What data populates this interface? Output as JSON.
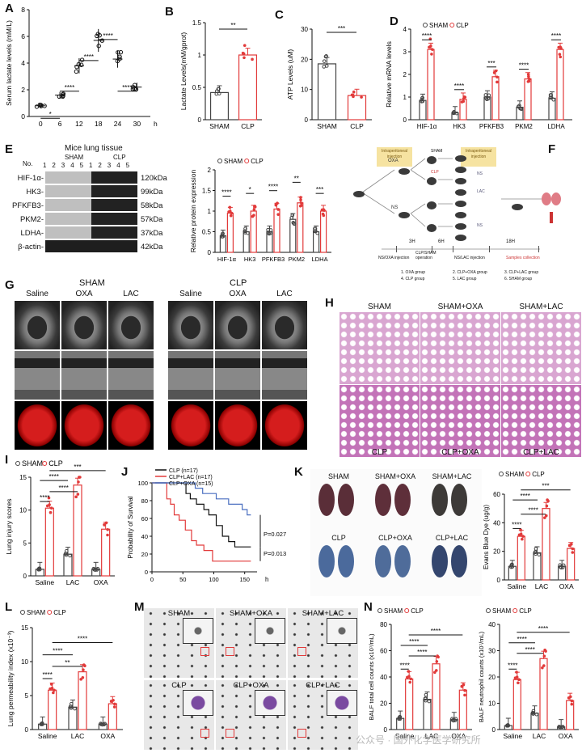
{
  "colors": {
    "sham": "#444444",
    "clp": "#e23a3a",
    "clp_line": "#111111",
    "clp_lac": "#e23a3a",
    "clp_oxa": "#4a6fc0",
    "he_pink": "#d7a2cf",
    "lung_red": "#d51d1d"
  },
  "panel_letters": [
    "A",
    "B",
    "C",
    "D",
    "E",
    "F",
    "G",
    "H",
    "I",
    "J",
    "K",
    "L",
    "M",
    "N"
  ],
  "chart_data": [
    {
      "id": "A",
      "type": "scatter",
      "ylabel": "Serum lactate levels (mM/L)",
      "categories": [
        "0",
        "6",
        "12",
        "18",
        "24",
        "30"
      ],
      "x_unit": "h",
      "values": [
        0.8,
        1.6,
        3.8,
        5.7,
        4.3,
        2.2
      ],
      "ylim": [
        0,
        8
      ],
      "yticks": [
        0,
        2,
        4,
        6,
        8
      ],
      "sig": [
        "*",
        "****",
        "****",
        "****",
        "****"
      ]
    },
    {
      "id": "B",
      "type": "bar",
      "ylabel": "Lactate Levels(mM/gprot)",
      "categories": [
        "SHAM",
        "CLP"
      ],
      "values": [
        0.42,
        1.0
      ],
      "ylim": [
        0,
        1.5
      ],
      "yticks": [
        0.0,
        0.5,
        1.0,
        1.5
      ],
      "sig": "**"
    },
    {
      "id": "C",
      "type": "bar",
      "ylabel": "ATP Levels (uM)",
      "categories": [
        "SHAM",
        "CLP"
      ],
      "values": [
        18.5,
        8.0
      ],
      "ylim": [
        0,
        30
      ],
      "yticks": [
        0,
        10,
        20,
        30
      ],
      "sig": "***"
    },
    {
      "id": "D",
      "type": "bar",
      "ylabel": "Relative mRNA levels",
      "categories": [
        "HIF-1α",
        "HK3",
        "PFKFB3",
        "PKM2",
        "LDHA"
      ],
      "series": [
        {
          "name": "SHAM",
          "values": [
            0.85,
            0.3,
            1.0,
            0.55,
            0.95
          ]
        },
        {
          "name": "CLP",
          "values": [
            3.1,
            0.9,
            1.9,
            1.8,
            3.1
          ]
        }
      ],
      "ylim": [
        0,
        4
      ],
      "yticks": [
        0,
        1,
        2,
        3,
        4
      ],
      "sig": [
        "****",
        "****",
        "***",
        "****",
        "****"
      ]
    },
    {
      "id": "E",
      "type": "bar",
      "ylabel": "Relative protein expression",
      "categories": [
        "HIF-1α",
        "HK3",
        "PFKFB3",
        "PKM2",
        "LDHA"
      ],
      "series": [
        {
          "name": "SHAM",
          "values": [
            0.4,
            0.5,
            0.5,
            0.8,
            0.5
          ]
        },
        {
          "name": "CLP",
          "values": [
            0.95,
            1.0,
            1.05,
            1.2,
            1.0
          ]
        }
      ],
      "ylim": [
        0,
        2.0
      ],
      "yticks": [
        0.0,
        0.5,
        1.0,
        1.5,
        2.0
      ],
      "sig": [
        "****",
        "*",
        "****",
        "**",
        "***"
      ]
    },
    {
      "id": "I",
      "type": "bar",
      "ylabel": "Lung injury scores",
      "categories": [
        "Saline",
        "LAC",
        "OXA"
      ],
      "series": [
        {
          "name": "SHAM",
          "values": [
            1.0,
            3.3,
            1.0
          ]
        },
        {
          "name": "CLP",
          "values": [
            10.3,
            13.8,
            7.1
          ]
        }
      ],
      "ylim": [
        0,
        15
      ],
      "yticks": [
        0,
        5,
        10,
        15
      ],
      "sig": [
        "****",
        "****",
        "****",
        "***"
      ]
    },
    {
      "id": "J",
      "type": "line",
      "ylabel": "Probability of Survival",
      "x_unit": "h",
      "xlim": [
        0,
        170
      ],
      "ylim": [
        0,
        100
      ],
      "xticks": [
        0,
        50,
        100,
        150
      ],
      "yticks": [
        0,
        20,
        40,
        60,
        80,
        100
      ],
      "series": [
        {
          "name": "CLP (n=17)"
        },
        {
          "name": "CLP+LAC (n=17)"
        },
        {
          "name": "CLP+OXA (n=15)"
        }
      ],
      "annotations": [
        "P=0.027",
        "P=0.013"
      ]
    },
    {
      "id": "K",
      "type": "bar",
      "ylabel": "Evans Blue Dye (ug/g)",
      "categories": [
        "Saline",
        "LAC",
        "OXA"
      ],
      "series": [
        {
          "name": "SHAM",
          "values": [
            9.5,
            19.0,
            9.5
          ]
        },
        {
          "name": "CLP",
          "values": [
            30.5,
            50.0,
            22.0
          ]
        }
      ],
      "ylim": [
        0,
        60
      ],
      "yticks": [
        0,
        20,
        40,
        60
      ],
      "sig": [
        "****",
        "****",
        "****",
        "***"
      ]
    },
    {
      "id": "L",
      "type": "bar",
      "ylabel": "Lung permeability index (x10⁻³)",
      "categories": [
        "Saline",
        "LAC",
        "OXA"
      ],
      "series": [
        {
          "name": "SHAM",
          "values": [
            0.8,
            3.3,
            0.8
          ]
        },
        {
          "name": "CLP",
          "values": [
            5.8,
            8.5,
            3.8
          ]
        }
      ],
      "ylim": [
        0,
        15
      ],
      "yticks": [
        0,
        5,
        10,
        15
      ],
      "sig": [
        "****",
        "**",
        "****",
        "****"
      ]
    },
    {
      "id": "N1",
      "type": "bar",
      "ylabel": "BALF total cell counts (x10⁷/mL)",
      "categories": [
        "Saline",
        "LAC",
        "OXA"
      ],
      "series": [
        {
          "name": "SHAM",
          "values": [
            8.5,
            23.0,
            7.5
          ]
        },
        {
          "name": "CLP",
          "values": [
            38.5,
            50.0,
            30.0
          ]
        }
      ],
      "ylim": [
        0,
        80
      ],
      "yticks": [
        0,
        20,
        40,
        60,
        80
      ],
      "sig": [
        "****",
        "****",
        "****",
        "****"
      ]
    },
    {
      "id": "N2",
      "type": "bar",
      "ylabel": "BALF neutrophil counts (x10⁷/mL)",
      "categories": [
        "Saline",
        "LAC",
        "OXA"
      ],
      "series": [
        {
          "name": "SHAM",
          "values": [
            1.5,
            6.2,
            1.0
          ]
        },
        {
          "name": "CLP",
          "values": [
            19.0,
            27.0,
            11.0
          ]
        }
      ],
      "ylim": [
        0,
        40
      ],
      "yticks": [
        0,
        10,
        20,
        30,
        40
      ],
      "sig": [
        "****",
        "****",
        "****",
        "****"
      ]
    }
  ],
  "blot": {
    "title": "Mice lung tissue",
    "no_label": "No.",
    "groups": [
      "SHAM",
      "CLP"
    ],
    "lanes": [
      "1",
      "2",
      "3",
      "4",
      "5",
      "1",
      "2",
      "3",
      "4",
      "5"
    ],
    "rows": [
      {
        "name": "HIF-1α-",
        "kda": "120kDa"
      },
      {
        "name": "HK3-",
        "kda": "99kDa"
      },
      {
        "name": "PFKFB3-",
        "kda": "58kDa"
      },
      {
        "name": "PKM2-",
        "kda": "57kDa"
      },
      {
        "name": "LDHA-",
        "kda": "37kDa"
      },
      {
        "name": "β-actin-",
        "kda": "42kDa"
      }
    ]
  },
  "schema": {
    "ip1": "Intraperitoneal injection",
    "ip2": "Intraperitoneal injection",
    "oxa": "OXA",
    "ns": "NS",
    "sham": "SHAM",
    "clp": "CLP",
    "ns2": "NS",
    "lac": "LAC",
    "ns3": "NS",
    "times": [
      "3H",
      "6H",
      "18H"
    ],
    "steps": [
      "NS/OXA injection",
      "CLP/SHAM operation",
      "NS/LAC injection",
      "Samples collection"
    ],
    "groups": [
      "1. OXA group",
      "2. CLP+OXA group",
      "3. CLP+LAC group",
      "4. CLP group",
      "5. LAC group",
      "6. SHAM group"
    ]
  },
  "ct": {
    "sham": "SHAM",
    "clp": "CLP",
    "cols": [
      "Saline",
      "OXA",
      "LAC",
      "Saline",
      "OXA",
      "LAC"
    ]
  },
  "he": {
    "top": [
      "SHAM",
      "SHAM+OXA",
      "SHAM+LAC"
    ],
    "bottom": [
      "CLP",
      "CLP+OXA",
      "CLP+LAC"
    ]
  },
  "evans": {
    "top": [
      "SHAM",
      "SHAM+OXA",
      "SHAM+LAC"
    ],
    "bottom": [
      "CLP",
      "CLP+OXA",
      "CLP+LAC"
    ]
  },
  "balf": {
    "top": [
      "SHAM",
      "SHAM+OXA",
      "SHAM+LAC"
    ],
    "bottom": [
      "CLP",
      "CLP+OXA",
      "CLP+LAC"
    ]
  },
  "watermark": "公众号 · 国外化学医学研究所"
}
